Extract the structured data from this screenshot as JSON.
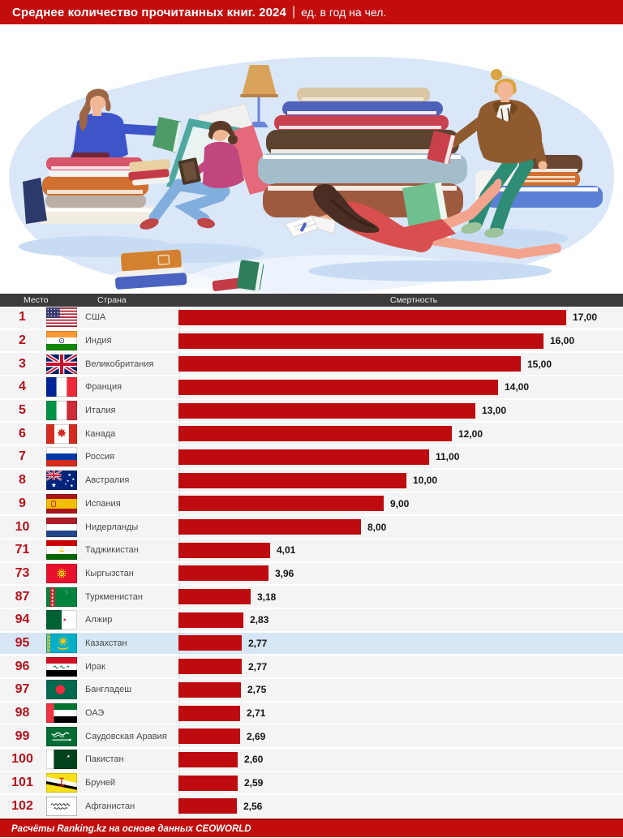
{
  "header": {
    "title": "Среднее количество прочитанных книг. 2024",
    "separator": "|",
    "subtitle": "ед. в год на чел."
  },
  "table": {
    "col_place": "Место",
    "col_country": "Страна",
    "col_value": "Смертность"
  },
  "footer": {
    "text": "Расчёты Ranking.kz на основе данных CEOWORLD"
  },
  "colors": {
    "header_red": "#C30D0D",
    "bar_red": "#BE0B10",
    "rank_red": "#B5121B",
    "highlight_blue": "#D7E6F4",
    "thead_bg": "#3B3B3B"
  },
  "chart_data": {
    "type": "bar",
    "title": "Среднее количество прочитанных книг. 2024",
    "unit": "ед. в год на чел.",
    "orientation": "horizontal",
    "xlim": [
      0,
      17
    ],
    "grid": false,
    "bar_color": "#BE0B10",
    "ranks": [
      "1",
      "2",
      "3",
      "4",
      "5",
      "6",
      "7",
      "8",
      "9",
      "10",
      "71",
      "73",
      "87",
      "94",
      "95",
      "96",
      "97",
      "98",
      "99",
      "100",
      "101",
      "102"
    ],
    "categories": [
      "США",
      "Индия",
      "Великобритания",
      "Франция",
      "Италия",
      "Канада",
      "Россия",
      "Австралия",
      "Испания",
      "Нидерланды",
      "Таджикистан",
      "Кыргызстан",
      "Туркменистан",
      "Алжир",
      "Казахстан",
      "Ирак",
      "Бангладеш",
      "ОАЭ",
      "Саудовская Аравия",
      "Пакистан",
      "Бруней",
      "Афганистан"
    ],
    "values": [
      17.0,
      16.0,
      15.0,
      14.0,
      13.0,
      12.0,
      11.0,
      10.0,
      9.0,
      8.0,
      4.01,
      3.96,
      3.18,
      2.83,
      2.77,
      2.77,
      2.75,
      2.71,
      2.69,
      2.6,
      2.59,
      2.56
    ],
    "value_labels": [
      "17,00",
      "16,00",
      "15,00",
      "14,00",
      "13,00",
      "12,00",
      "11,00",
      "10,00",
      "9,00",
      "8,00",
      "4,01",
      "3,96",
      "3,18",
      "2,83",
      "2,77",
      "2,77",
      "2,75",
      "2,71",
      "2,69",
      "2,60",
      "2,59",
      "2,56"
    ],
    "flags": [
      "usa",
      "india",
      "uk",
      "france",
      "italy",
      "canada",
      "russia",
      "australia",
      "spain",
      "netherlands",
      "tajikistan",
      "kyrgyzstan",
      "turkmenistan",
      "algeria",
      "kazakhstan",
      "iraq",
      "bangladesh",
      "uae",
      "saudi",
      "pakistan",
      "brunei",
      "afghanistan"
    ],
    "highlight_index": 14,
    "highlighted_country": "Казахстан"
  }
}
